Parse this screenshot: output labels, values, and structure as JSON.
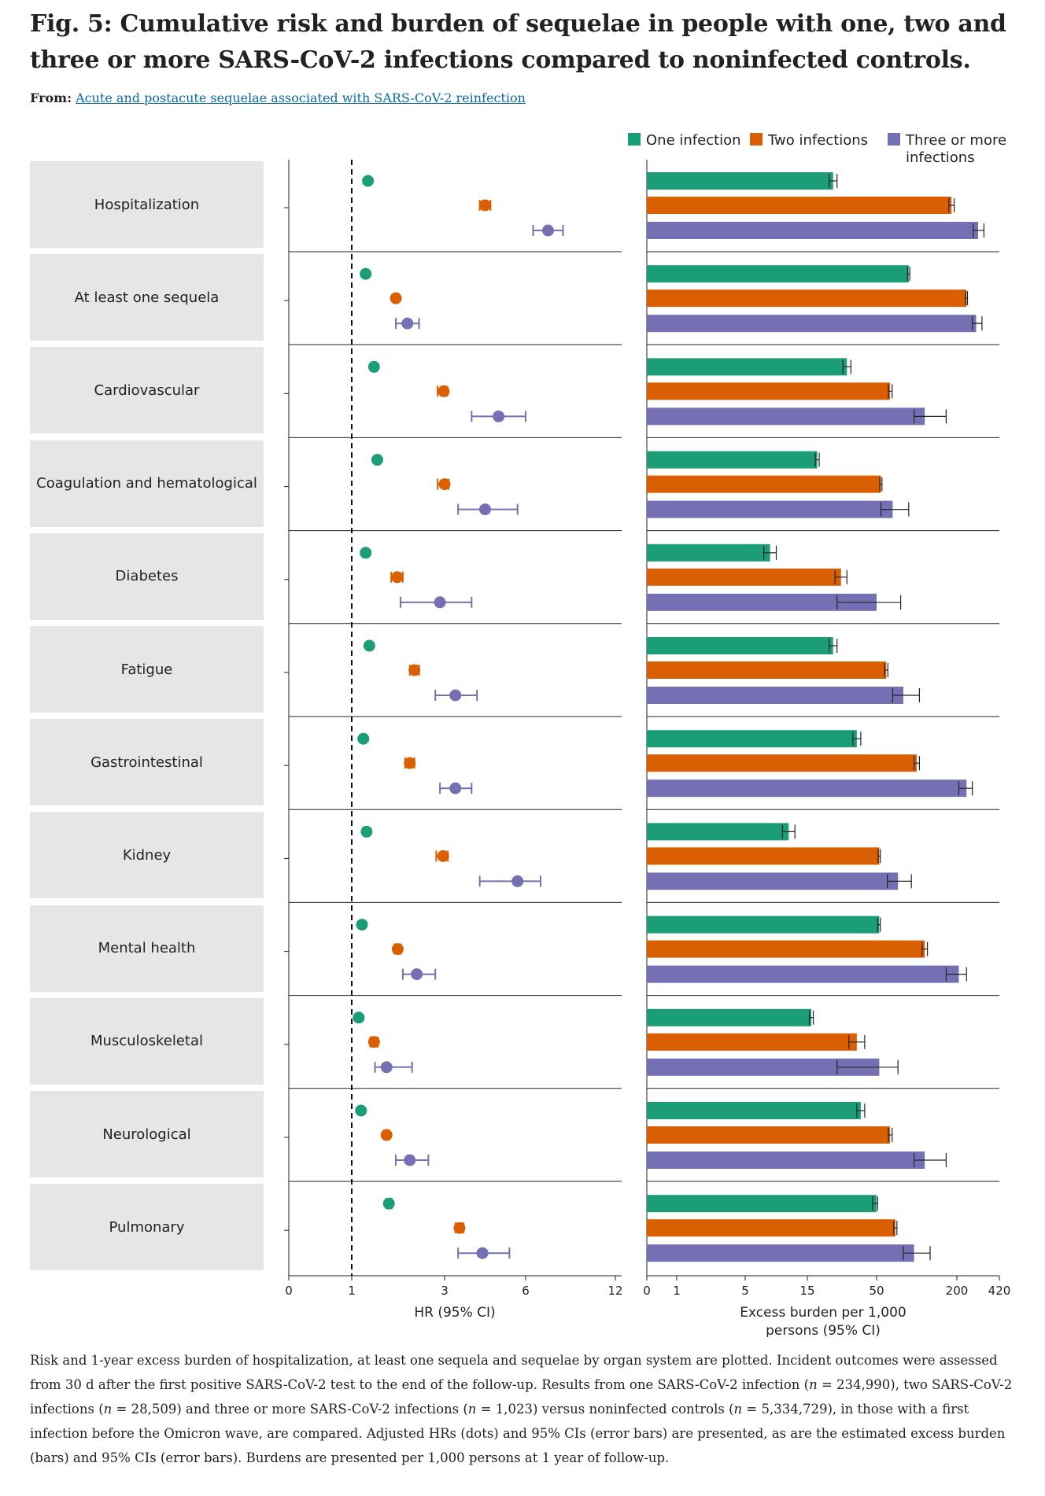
{
  "figure": {
    "title": "Fig. 5: Cumulative risk and burden of sequelae in people with one, two and three or more SARS-CoV-2 infections compared to noninfected controls.",
    "from_label": "From:",
    "from_link_text": "Acute and postacute sequelae associated with SARS-CoV-2 reinfection",
    "caption_parts": [
      "Risk and 1-year excess burden of hospitalization, at least one sequela and sequelae by organ system are plotted. Incident outcomes were assessed from 30 d after the first positive SARS-CoV-2 test to the end of the follow-up. Results from one SARS-CoV-2 infection (",
      "n",
      " = 234,990), two SARS-CoV-2 infections (",
      "n",
      " = 28,509) and three or more SARS-CoV-2 infections (",
      "n",
      " = 1,023) versus noninfected controls (",
      "n",
      " = 5,334,729), in those with a first infection before the Omicron wave, are compared. Adjusted HRs (dots) and 95% CIs (error bars) are presented, as are the estimated excess burden (bars) and 95% CIs (error bars). Burdens are presented per 1,000 persons at 1 year of follow-up."
    ]
  },
  "colors": {
    "one": "#1b9e77",
    "two": "#d95f02",
    "three": "#7570b3"
  },
  "legend": [
    {
      "key": "one",
      "label_lines": [
        "One infection"
      ]
    },
    {
      "key": "two",
      "label_lines": [
        "Two infections"
      ]
    },
    {
      "key": "three",
      "label_lines": [
        "Three or more",
        "infections"
      ]
    }
  ],
  "chart_data": [
    {
      "type": "scatter",
      "xlabel": "HR (95% CI)",
      "x_ticks": [
        0,
        1,
        3,
        6,
        12
      ],
      "x_scale": "custom (compressed, non-linear)",
      "reference_line": 1,
      "categories": [
        "Hospitalization",
        "At least one sequela",
        "Cardiovascular",
        "Coagulation and hematological",
        "Diabetes",
        "Fatigue",
        "Gastrointestinal",
        "Kidney",
        "Mental health",
        "Musculoskeletal",
        "Neurological",
        "Pulmonary"
      ],
      "series": [
        {
          "key": "one",
          "name": "One infection",
          "hr": [
            1.35,
            1.3,
            1.48,
            1.55,
            1.3,
            1.38,
            1.25,
            1.32,
            1.22,
            1.15,
            1.2,
            1.8
          ],
          "lo": [
            1.32,
            1.28,
            1.44,
            1.5,
            1.26,
            1.34,
            1.22,
            1.28,
            1.2,
            1.12,
            1.18,
            1.74
          ],
          "hi": [
            1.38,
            1.32,
            1.52,
            1.6,
            1.34,
            1.42,
            1.28,
            1.36,
            1.24,
            1.18,
            1.22,
            1.86
          ]
        },
        {
          "key": "two",
          "name": "Two infections",
          "hr": [
            4.5,
            1.95,
            2.98,
            3.0,
            1.98,
            2.35,
            2.25,
            2.97,
            1.99,
            1.48,
            1.75,
            3.55
          ],
          "lo": [
            4.3,
            1.9,
            2.85,
            2.85,
            1.85,
            2.25,
            2.15,
            2.82,
            1.92,
            1.4,
            1.7,
            3.4
          ],
          "hi": [
            4.7,
            2.0,
            3.1,
            3.15,
            2.1,
            2.45,
            2.35,
            3.12,
            2.06,
            1.56,
            1.8,
            3.7
          ]
        },
        {
          "key": "three",
          "name": "Three or more infections",
          "hr": [
            7.5,
            2.2,
            5.0,
            4.5,
            2.9,
            3.4,
            3.4,
            5.7,
            2.4,
            1.75,
            2.25,
            4.4
          ],
          "lo": [
            6.5,
            1.95,
            4.0,
            3.5,
            2.05,
            2.8,
            2.9,
            4.3,
            2.1,
            1.5,
            1.95,
            3.5
          ],
          "hi": [
            8.5,
            2.45,
            6.0,
            5.7,
            4.0,
            4.2,
            4.0,
            7.0,
            2.8,
            2.3,
            2.65,
            5.4
          ]
        }
      ]
    },
    {
      "type": "bar",
      "xlabel": "Excess burden per 1,000 persons (95% CI)",
      "x_ticks": [
        0,
        1,
        5,
        15,
        50,
        200,
        420
      ],
      "x_scale": "custom (compressed, non-linear)",
      "categories": [
        "Hospitalization",
        "At least one sequela",
        "Cardiovascular",
        "Coagulation and hematological",
        "Diabetes",
        "Fatigue",
        "Gastrointestinal",
        "Kidney",
        "Mental health",
        "Musculoskeletal",
        "Neurological",
        "Pulmonary"
      ],
      "series": [
        {
          "key": "one",
          "name": "One infection",
          "values": [
            28,
            110,
            35,
            20,
            9,
            28,
            40,
            12,
            55,
            17,
            42,
            50
          ],
          "lo": [
            26,
            108,
            33,
            19,
            8,
            26,
            38,
            11,
            52,
            16,
            40,
            48
          ],
          "hi": [
            30,
            112,
            37,
            21,
            10,
            30,
            42,
            13,
            57,
            18,
            44,
            52
          ]
        },
        {
          "key": "two",
          "name": "Two infections",
          "values": [
            190,
            250,
            75,
            58,
            32,
            68,
            125,
            55,
            140,
            40,
            75,
            85
          ],
          "lo": [
            185,
            245,
            72,
            56,
            29,
            65,
            120,
            53,
            135,
            36,
            72,
            82
          ],
          "hi": [
            195,
            255,
            79,
            60,
            35,
            71,
            130,
            57,
            145,
            44,
            79,
            88
          ]
        },
        {
          "key": "three",
          "name": "Three or more infections",
          "values": [
            310,
            300,
            140,
            80,
            50,
            100,
            250,
            90,
            210,
            55,
            140,
            120
          ],
          "lo": [
            285,
            280,
            120,
            58,
            30,
            80,
            210,
            70,
            180,
            30,
            120,
            100
          ],
          "hi": [
            340,
            330,
            180,
            110,
            95,
            130,
            280,
            115,
            250,
            90,
            180,
            150
          ]
        }
      ]
    }
  ]
}
